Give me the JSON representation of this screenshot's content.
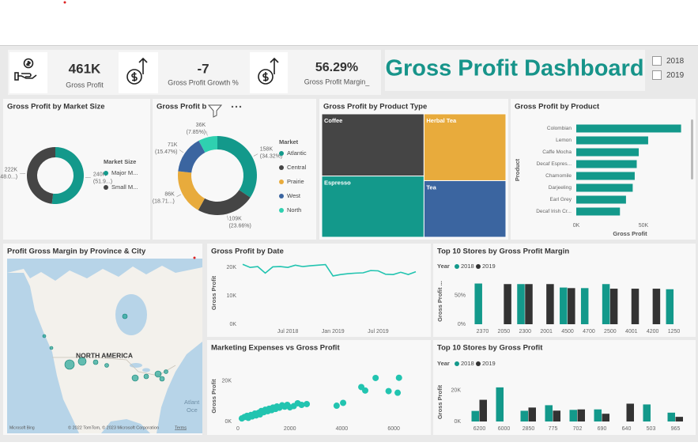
{
  "header": {
    "kpis": [
      {
        "value": "461K",
        "label": "Gross Profit"
      },
      {
        "value": "-7",
        "label": "Gross Profit Growth %"
      },
      {
        "value": "56.29%",
        "label": "Gross Profit Margin_"
      }
    ],
    "title": "Gross Profit Dashboard",
    "year_filter": [
      "2018",
      "2019"
    ]
  },
  "chart_data": [
    {
      "type": "donut",
      "title": "Gross Profit by Market Size",
      "legend_title": "Market Size",
      "categories": [
        "Major M...",
        "Small M..."
      ],
      "values": [
        240000,
        222000
      ],
      "value_labels": [
        "240K",
        "222K"
      ],
      "percent_labels": [
        "(51.9...)",
        "(48.0...)"
      ],
      "colors": [
        "#13998b",
        "#454545"
      ]
    },
    {
      "type": "donut",
      "title": "Gross Profit b",
      "legend_title": "Market",
      "categories": [
        "Atlantic",
        "Central",
        "Prairie",
        "West",
        "North"
      ],
      "values": [
        158000,
        109000,
        86000,
        71000,
        36000
      ],
      "value_labels": [
        "158K",
        "109K",
        "86K",
        "71K",
        "36K"
      ],
      "percent_labels": [
        "(34.32%)",
        "(23.66%)",
        "(18.71...)",
        "(15.47%)",
        "(7.85%)"
      ],
      "colors": [
        "#13998b",
        "#454545",
        "#e8ab3c",
        "#3b65a0",
        "#2fd0b0"
      ]
    },
    {
      "type": "treemap",
      "title": "Gross Profit by Product Type",
      "categories": [
        "Coffee",
        "Espresso",
        "Herbal Tea",
        "Tea"
      ],
      "values": [
        129000,
        127000,
        111000,
        94000
      ],
      "colors": [
        "#454545",
        "#13998b",
        "#e8ab3c",
        "#3b65a0"
      ]
    },
    {
      "type": "bar",
      "orientation": "horizontal",
      "title": "Gross Profit by Product",
      "xlabel": "Gross Profit",
      "ylabel": "Product",
      "categories": [
        "Colombian",
        "Lemon",
        "Caffe Mocha",
        "Decaf Espres...",
        "Chamomile",
        "Darjeeling",
        "Earl Grey",
        "Decaf Irish Cr..."
      ],
      "values": [
        78000,
        53500,
        46500,
        45000,
        43500,
        42000,
        37000,
        32500
      ],
      "color": "#13998b",
      "xlim": [
        0,
        80000
      ],
      "xticks": [
        {
          "value": 0,
          "label": "0K"
        },
        {
          "value": 50000,
          "label": "50K"
        }
      ]
    },
    {
      "type": "map",
      "title": "Profit Gross Margin by Province & City",
      "region_label": "NORTH AMERICA",
      "ocean_label": [
        "Atlant",
        "Oce"
      ],
      "attribution": "© 2022 TomTom, © 2023 Microsoft Corporation",
      "terms": "Terms",
      "logo": "Microsoft Bing"
    },
    {
      "type": "line",
      "title": "Gross Profit by Date",
      "ylabel": "Gross Profit",
      "categories": [
        null,
        null,
        null,
        null,
        null,
        null,
        "Jul 2018",
        null,
        null,
        null,
        null,
        null,
        "Jan 2019",
        null,
        null,
        null,
        null,
        null,
        "Jul 2019",
        null,
        null,
        null,
        null,
        null
      ],
      "values": [
        21100,
        20000,
        20300,
        18000,
        20200,
        20300,
        20000,
        20800,
        20300,
        20600,
        20800,
        21000,
        17000,
        17500,
        17800,
        18000,
        18100,
        18900,
        18800,
        17600,
        17500,
        18300,
        17500,
        18500
      ],
      "color": "#22c4b0",
      "ylim": [
        0,
        22000
      ],
      "yticks": [
        {
          "value": 0,
          "label": "0K"
        },
        {
          "value": 10000,
          "label": "10K"
        },
        {
          "value": 20000,
          "label": "20K"
        }
      ]
    },
    {
      "type": "grouped_bar",
      "title": "Top 10 Stores by Gross Profit Margin",
      "ylabel": "Gross Profit ...",
      "legend_title": "Year",
      "categories": [
        "2370",
        "2050",
        "2300",
        "2001",
        "4500",
        "4700",
        "2500",
        "4001",
        "4200",
        "1250"
      ],
      "series": [
        {
          "name": "2018",
          "color": "#13998b",
          "values": [
            71,
            null,
            70,
            null,
            64,
            63,
            70,
            null,
            null,
            61
          ]
        },
        {
          "name": "2019",
          "color": "#333333",
          "values": [
            null,
            70,
            70,
            70,
            63,
            null,
            62,
            62,
            62,
            null
          ]
        }
      ],
      "ylim": [
        0,
        80
      ],
      "yticks": [
        {
          "value": 0,
          "label": "0%"
        },
        {
          "value": 50,
          "label": "50%"
        }
      ]
    },
    {
      "type": "scatter",
      "title": "Marketing Expenses vs Gross Profit",
      "ylabel": "Gross Profit",
      "x": [
        150,
        250,
        350,
        400,
        500,
        550,
        650,
        700,
        800,
        850,
        900,
        1000,
        1050,
        1150,
        1200,
        1300,
        1350,
        1450,
        1500,
        1600,
        1700,
        1800,
        1900,
        2000,
        2150,
        2300,
        2450,
        2650,
        3800,
        4050,
        4750,
        4900,
        5300,
        5800,
        6150,
        6200
      ],
      "values": [
        1500,
        2200,
        2800,
        1800,
        3200,
        2500,
        3900,
        3000,
        4300,
        3500,
        5200,
        4600,
        5800,
        5100,
        6300,
        5600,
        6900,
        6200,
        7400,
        6800,
        8000,
        7300,
        8200,
        7000,
        7600,
        9000,
        8200,
        8600,
        7800,
        9200,
        17000,
        15300,
        21500,
        15000,
        14200,
        21600
      ],
      "color": "#22c4b0",
      "xlim": [
        0,
        7000
      ],
      "xticks": [
        0,
        2000,
        4000,
        6000
      ],
      "ylim": [
        0,
        25000
      ],
      "yticks": [
        {
          "value": 0,
          "label": "0K"
        },
        {
          "value": 20000,
          "label": "20K"
        }
      ]
    },
    {
      "type": "grouped_bar",
      "title": "Top 10 Stores by Gross Profit",
      "ylabel": "Gross Profit",
      "legend_title": "Year",
      "categories": [
        "6200",
        "6000",
        "2850",
        "775",
        "702",
        "690",
        "640",
        "503",
        "965"
      ],
      "series": [
        {
          "name": "2018",
          "color": "#13998b",
          "values": [
            6800,
            22000,
            6900,
            10500,
            7500,
            7800,
            null,
            11000,
            5700
          ]
        },
        {
          "name": "2019",
          "color": "#333333",
          "values": [
            14000,
            null,
            9000,
            7000,
            7800,
            5000,
            11500,
            null,
            3000
          ]
        }
      ],
      "ylim": [
        0,
        25000
      ],
      "yticks": [
        {
          "value": 0,
          "label": "0K"
        },
        {
          "value": 20000,
          "label": "20K"
        }
      ]
    }
  ]
}
